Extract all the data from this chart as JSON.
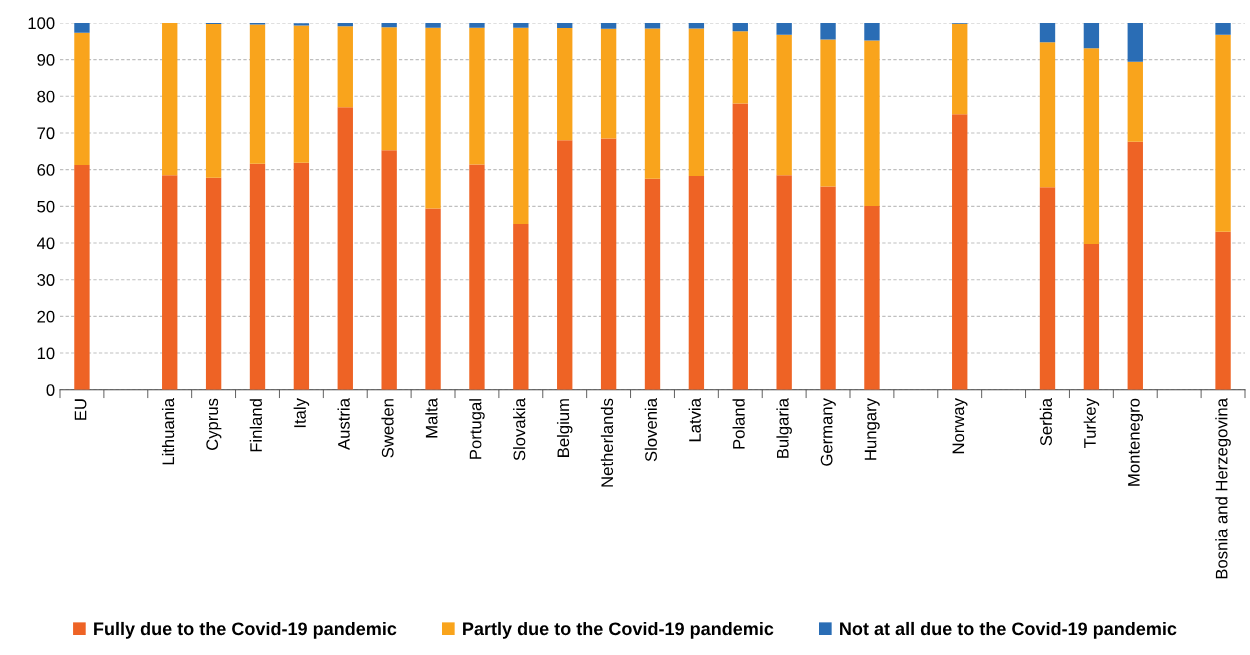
{
  "chart_data": {
    "type": "bar",
    "stacked": true,
    "categories": [
      "EU",
      null,
      "Lithuania",
      "Cyprus",
      "Finland",
      "Italy",
      "Austria",
      "Sweden",
      "Malta",
      "Portugal",
      "Slovakia",
      "Belgium",
      "Netherlands",
      "Slovenia",
      "Latvia",
      "Poland",
      "Bulgaria",
      "Germany",
      "Hungary",
      null,
      "Norway",
      null,
      "Serbia",
      "Turkey",
      "Montenegro",
      null,
      "Bosnia and Herzegovina"
    ],
    "series": [
      {
        "name": "Fully due to the Covid-19 pandemic",
        "color": "#ee6325",
        "values": [
          61.3,
          null,
          58.5,
          57.8,
          61.6,
          61.9,
          77.0,
          65.3,
          49.4,
          61.4,
          45.2,
          68.0,
          68.5,
          57.5,
          58.3,
          78.0,
          58.5,
          55.4,
          50.1,
          null,
          75.1,
          null,
          55.2,
          39.7,
          67.6,
          null,
          43.1
        ]
      },
      {
        "name": "Partly due to the Covid-19 pandemic",
        "color": "#f9a41c",
        "values": [
          36.0,
          null,
          41.5,
          41.9,
          38.0,
          37.4,
          22.1,
          33.5,
          49.3,
          37.3,
          53.5,
          30.6,
          29.9,
          41.0,
          40.2,
          19.7,
          38.3,
          40.1,
          45.1,
          null,
          24.7,
          null,
          39.5,
          53.4,
          21.8,
          null,
          53.7
        ]
      },
      {
        "name": "Not at all due to the Covid-19 pandemic",
        "color": "#2a6db5",
        "values": [
          2.7,
          null,
          null,
          0.3,
          0.4,
          0.6,
          0.9,
          1.2,
          1.3,
          1.3,
          1.3,
          1.4,
          1.6,
          1.5,
          1.5,
          2.3,
          3.2,
          4.5,
          4.8,
          null,
          0.2,
          null,
          5.3,
          6.9,
          10.6,
          null,
          3.2
        ]
      }
    ],
    "ylim": [
      0,
      100
    ],
    "yticks": [
      0,
      10,
      20,
      30,
      40,
      50,
      60,
      70,
      80,
      90,
      100
    ],
    "grid": "y",
    "legend": "bottom"
  }
}
